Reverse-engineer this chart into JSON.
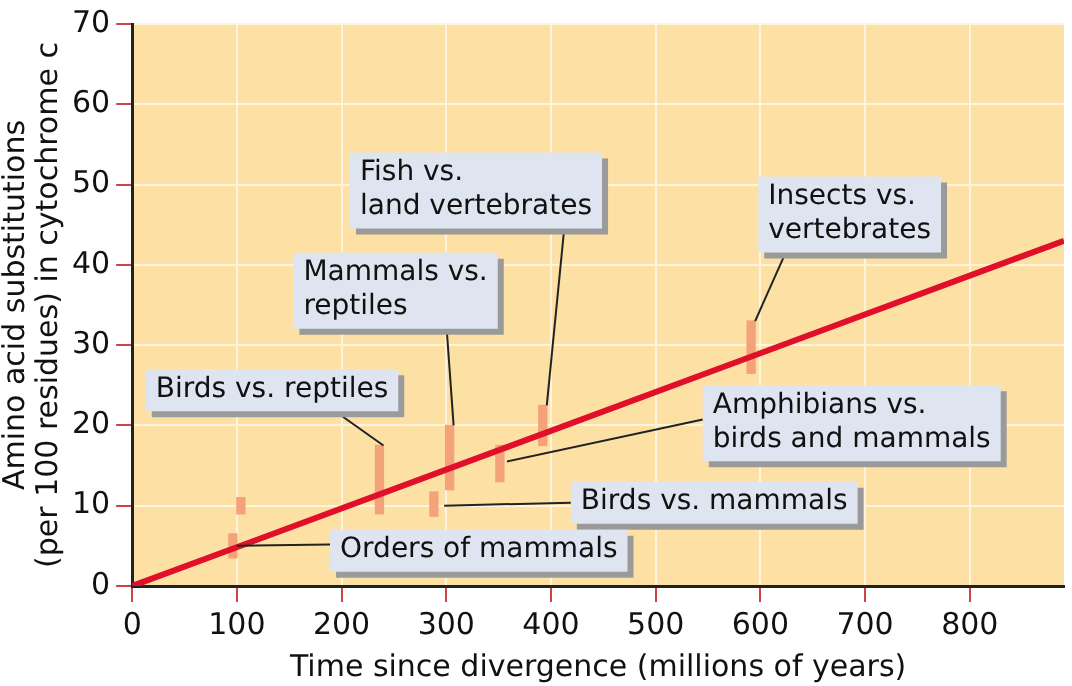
{
  "chart_data": {
    "type": "line",
    "xlabel": "Time since divergence (millions of years)",
    "ylabel": "Amino acid substitutions\n(per 100 residues) in cytochrome c",
    "xlim": [
      0,
      890
    ],
    "xticks": [
      0,
      100,
      200,
      300,
      400,
      500,
      600,
      700,
      800
    ],
    "ylim": [
      0,
      70
    ],
    "yticks": [
      0,
      10,
      20,
      30,
      40,
      50,
      60,
      70
    ],
    "grid": true,
    "legend": false,
    "series": [
      {
        "color": "#e0102a",
        "x": [
          0,
          890
        ],
        "values": [
          0,
          43
        ]
      },
      {
        "type": "bar",
        "color": "#f4a27a",
        "x": [
          100,
          240,
          292,
          307,
          355,
          396,
          595
        ],
        "base": [
          3.5,
          9,
          8.7,
          12,
          13,
          17.5,
          26.5
        ],
        "values": [
          3,
          8.5,
          3,
          8,
          4.5,
          5,
          6.5
        ]
      },
      {
        "type": "bar",
        "color": "#f4a27a",
        "x": [
          100
        ],
        "base": [
          9
        ],
        "values": [
          2
        ]
      }
    ],
    "annotations": [
      {
        "text": "Birds vs. reptiles",
        "x": 240,
        "y": 17.5
      },
      {
        "text": "Mammals vs.\nreptiles",
        "x": 307,
        "y": 20
      },
      {
        "text": "Fish vs.\nland vertebrates",
        "x": 396,
        "y": 22.5
      },
      {
        "text": "Insects vs.\nvertebrates",
        "x": 595,
        "y": 33
      },
      {
        "text": "Amphibians vs.\nbirds and mammals",
        "x": 358,
        "y": 15.5
      },
      {
        "text": "Birds vs. mammals",
        "x": 298,
        "y": 10
      },
      {
        "text": "Orders of mammals",
        "x": 100,
        "y": 5
      }
    ]
  }
}
